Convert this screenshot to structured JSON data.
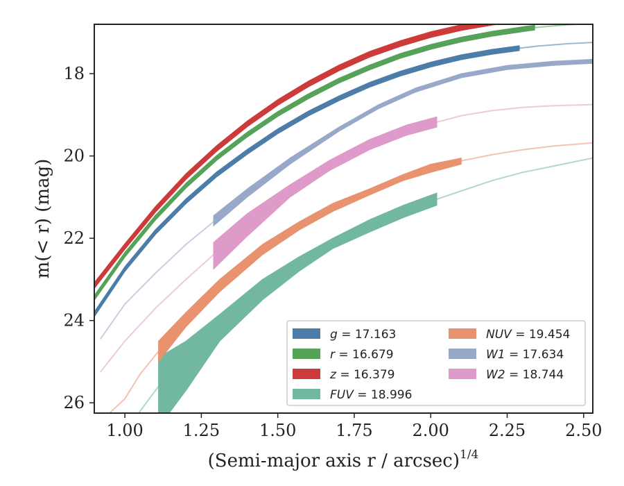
{
  "chart_data": {
    "type": "line",
    "xlabel": "(Semi-major axis r / arcsec)",
    "xlabel_sup": "1/4",
    "ylabel": "m(< r) (mag)",
    "xlim": [
      0.9,
      2.53
    ],
    "ylim": [
      26.25,
      16.8
    ],
    "y_inverted": true,
    "x_ticks": [
      1.0,
      1.25,
      1.5,
      1.75,
      2.0,
      2.25,
      2.5
    ],
    "x_tick_labels": [
      "1.00",
      "1.25",
      "1.50",
      "1.75",
      "2.00",
      "2.25",
      "2.50"
    ],
    "y_ticks": [
      18,
      20,
      22,
      24,
      26
    ],
    "y_tick_labels": [
      "18",
      "20",
      "22",
      "24",
      "26"
    ],
    "grid": false,
    "legend_position": "lower-right",
    "legend_columns": 2,
    "series": [
      {
        "key": "g",
        "label_var": "g",
        "label_value": "= 17.163",
        "color": "#4c7ca8",
        "band_x": [
          0.9,
          1.0,
          1.1,
          1.2,
          1.3,
          1.4,
          1.5,
          1.6,
          1.7,
          1.8,
          1.9,
          2.0,
          2.1,
          2.2,
          2.29
        ],
        "band_center": [
          23.85,
          22.75,
          21.85,
          21.1,
          20.45,
          19.9,
          19.4,
          18.97,
          18.6,
          18.27,
          18.0,
          17.78,
          17.6,
          17.47,
          17.38
        ],
        "band_width": [
          0.06,
          0.06,
          0.06,
          0.06,
          0.06,
          0.06,
          0.06,
          0.06,
          0.06,
          0.06,
          0.06,
          0.06,
          0.06,
          0.06,
          0.06
        ],
        "ext_x": [
          2.29,
          2.35,
          2.4,
          2.45,
          2.53
        ],
        "ext_y": [
          17.38,
          17.33,
          17.3,
          17.27,
          17.24
        ]
      },
      {
        "key": "r",
        "label_var": "r",
        "label_value": "= 16.679",
        "color": "#55a258",
        "band_x": [
          0.9,
          1.0,
          1.1,
          1.2,
          1.3,
          1.4,
          1.5,
          1.6,
          1.7,
          1.8,
          1.9,
          2.0,
          2.1,
          2.2,
          2.3,
          2.34
        ],
        "band_center": [
          23.45,
          22.4,
          21.5,
          20.72,
          20.05,
          19.48,
          18.98,
          18.55,
          18.17,
          17.85,
          17.57,
          17.35,
          17.17,
          17.03,
          16.92,
          16.88
        ],
        "band_width": [
          0.06,
          0.06,
          0.06,
          0.06,
          0.06,
          0.06,
          0.06,
          0.06,
          0.06,
          0.06,
          0.06,
          0.06,
          0.06,
          0.06,
          0.06,
          0.06
        ],
        "ext_x": [
          2.34,
          2.4,
          2.45,
          2.53
        ],
        "ext_y": [
          16.88,
          16.84,
          16.81,
          16.78
        ]
      },
      {
        "key": "z",
        "label_var": "z",
        "label_value": "= 16.379",
        "color": "#cc3a3a",
        "band_x": [
          0.9,
          1.0,
          1.1,
          1.2,
          1.3,
          1.4,
          1.5,
          1.6,
          1.7,
          1.8,
          1.9,
          2.0,
          2.1,
          2.2,
          2.3,
          2.4
        ],
        "band_center": [
          23.15,
          22.2,
          21.3,
          20.5,
          19.82,
          19.22,
          18.7,
          18.25,
          17.86,
          17.53,
          17.27,
          17.05,
          16.88,
          16.75,
          16.65,
          16.57
        ],
        "band_width": [
          0.07,
          0.07,
          0.07,
          0.07,
          0.07,
          0.07,
          0.07,
          0.07,
          0.07,
          0.07,
          0.07,
          0.07,
          0.07,
          0.07,
          0.07,
          0.07
        ],
        "ext_x": [
          2.4,
          2.45,
          2.53
        ],
        "ext_y": [
          16.57,
          16.54,
          16.5
        ]
      },
      {
        "key": "FUV",
        "label_var": "FUV",
        "label_value": "= 18.996",
        "color": "#72b8a0",
        "band_x": [
          1.11,
          1.2,
          1.31,
          1.45,
          1.57,
          1.68,
          1.8,
          1.91,
          2.02
        ],
        "band_lo": [
          26.6,
          25.7,
          24.5,
          23.5,
          22.8,
          22.25,
          21.85,
          21.5,
          21.2
        ],
        "band_hi": [
          24.9,
          24.5,
          23.85,
          23.0,
          22.45,
          22.0,
          21.55,
          21.2,
          20.9
        ],
        "ext_x": [
          0.9,
          1.0,
          1.05,
          1.11
        ],
        "ext_y": [
          28.5,
          26.8,
          26.2,
          25.6
        ],
        "ext2_x": [
          2.02,
          2.1,
          2.2,
          2.3,
          2.4,
          2.53
        ],
        "ext2_y": [
          21.05,
          20.85,
          20.6,
          20.4,
          20.25,
          20.05
        ]
      },
      {
        "key": "NUV",
        "label_var": "NUV",
        "label_value": "= 19.454",
        "color": "#e89270",
        "band_x": [
          1.11,
          1.2,
          1.31,
          1.45,
          1.57,
          1.68,
          1.8,
          1.91,
          2.0,
          2.1
        ],
        "band_lo": [
          25.0,
          24.15,
          23.3,
          22.4,
          21.8,
          21.35,
          20.95,
          20.6,
          20.4,
          20.2
        ],
        "band_hi": [
          24.5,
          23.8,
          23.0,
          22.15,
          21.6,
          21.15,
          20.8,
          20.45,
          20.2,
          20.05
        ],
        "ext_x": [
          0.95,
          1.0,
          1.05,
          1.11
        ],
        "ext_y": [
          26.25,
          25.9,
          25.3,
          24.75
        ],
        "ext2_x": [
          2.1,
          2.2,
          2.3,
          2.4,
          2.53
        ],
        "ext2_y": [
          20.12,
          19.97,
          19.85,
          19.76,
          19.68
        ]
      },
      {
        "key": "W1",
        "label_var": "W1",
        "label_value": "= 17.634",
        "color": "#98a8c8",
        "band_x": [
          1.29,
          1.4,
          1.54,
          1.7,
          1.83,
          1.95,
          2.1,
          2.25,
          2.4,
          2.53
        ],
        "band_lo": [
          21.7,
          21.0,
          20.2,
          19.4,
          18.85,
          18.45,
          18.1,
          17.9,
          17.8,
          17.75
        ],
        "band_hi": [
          21.45,
          20.8,
          20.05,
          19.3,
          18.75,
          18.35,
          18.0,
          17.8,
          17.7,
          17.65
        ],
        "ext_x": [
          0.92,
          1.0,
          1.1,
          1.2,
          1.29
        ],
        "ext_y": [
          24.45,
          23.6,
          22.85,
          22.15,
          21.6
        ]
      },
      {
        "key": "W2",
        "label_var": "W2",
        "label_value": "= 18.744",
        "color": "#de9ac8",
        "band_x": [
          1.29,
          1.4,
          1.54,
          1.67,
          1.8,
          1.92,
          2.02
        ],
        "band_lo": [
          22.75,
          21.95,
          21.0,
          20.35,
          19.85,
          19.5,
          19.3
        ],
        "band_hi": [
          22.1,
          21.4,
          20.7,
          20.1,
          19.6,
          19.25,
          19.05
        ],
        "ext_x": [
          0.92,
          1.0,
          1.1,
          1.2,
          1.29
        ],
        "ext_y": [
          25.25,
          24.5,
          23.7,
          23.0,
          22.4
        ],
        "ext2_x": [
          2.02,
          2.1,
          2.2,
          2.3,
          2.4,
          2.53
        ],
        "ext2_y": [
          19.18,
          19.02,
          18.9,
          18.82,
          18.78,
          18.75
        ]
      }
    ]
  }
}
